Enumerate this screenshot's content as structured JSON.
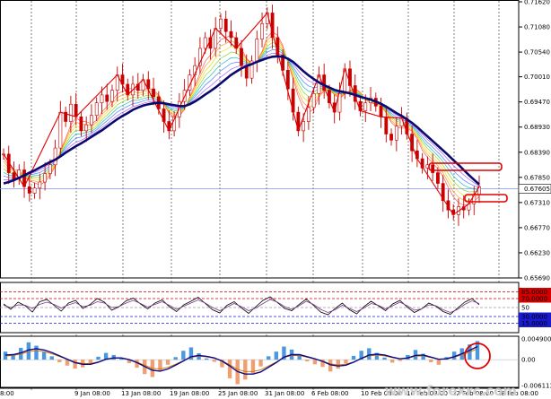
{
  "chart_data": [
    {
      "type": "candlestick",
      "instrument_price_label": "0.67605",
      "y_tick_labels": [
        "0.71620",
        "0.71080",
        "0.70540",
        "0.70010",
        "0.69470",
        "0.68930",
        "0.68390",
        "0.67850",
        "0.67310",
        "0.66770",
        "0.66230",
        "0.65690"
      ],
      "ylim": [
        0.6569,
        0.7162
      ],
      "x_tick_labels": [
        "8:00",
        "9 Jan 08:00",
        "13 Jan 08:00",
        "19 Jan 08:00",
        "25 Jan 08:00",
        "31 Jan 08:00",
        "6 Feb 08:00",
        "10 Feb 08:00",
        "16 Feb 08:00",
        "22 Feb 08:00",
        "28 Feb 08:00"
      ],
      "series": [
        {
          "values": [
            0.6835,
            0.6795,
            0.6781,
            0.6801,
            0.6765,
            0.6751,
            0.6762,
            0.6775,
            0.6793,
            0.6812,
            0.6848,
            0.6925,
            0.6905,
            0.6942,
            0.6915,
            0.6885,
            0.6898,
            0.6918,
            0.6945,
            0.6962,
            0.6948,
            0.6972,
            0.7005,
            0.6985,
            0.6962,
            0.6985,
            0.6972,
            0.6995,
            0.6975,
            0.6958,
            0.6932,
            0.6905,
            0.6885,
            0.6915,
            0.6948,
            0.6972,
            0.7005,
            0.7025,
            0.7062,
            0.7085,
            0.7062,
            0.7105,
            0.7125,
            0.7098,
            0.7085,
            0.7062,
            0.7025,
            0.6998,
            0.7035,
            0.7082,
            0.7115,
            0.7138,
            0.7085,
            0.7048,
            0.7015,
            0.6975,
            0.6925,
            0.6885,
            0.6905,
            0.6935,
            0.6965,
            0.7005,
            0.6972,
            0.6945,
            0.6925,
            0.6965,
            0.7018,
            0.6982,
            0.6948,
            0.6928,
            0.6945,
            0.6955,
            0.6938,
            0.6915,
            0.6878,
            0.6865,
            0.6895,
            0.6912,
            0.6878,
            0.6842,
            0.6825,
            0.6805,
            0.6812,
            0.6795,
            0.6772,
            0.6735,
            0.6715,
            0.6705,
            0.6722,
            0.6715,
            0.6728,
            0.6748,
            0.6765
          ]
        },
        {
          "values": [
            0.6772,
            0.6775,
            0.6779,
            0.6784,
            0.6789,
            0.6795,
            0.68,
            0.6806,
            0.6812,
            0.6818,
            0.6823,
            0.683,
            0.6838,
            0.6845,
            0.6852,
            0.6858,
            0.6865,
            0.6872,
            0.6879,
            0.6886,
            0.6894,
            0.6902,
            0.691,
            0.6917,
            0.6923,
            0.693,
            0.6935,
            0.6939,
            0.6942,
            0.6944,
            0.6945,
            0.6944,
            0.6942,
            0.694,
            0.6938,
            0.6938,
            0.6942,
            0.6948,
            0.6955,
            0.6963,
            0.697,
            0.6978,
            0.6987,
            0.6996,
            0.7005,
            0.7012,
            0.7019,
            0.7024,
            0.7028,
            0.7033,
            0.7037,
            0.7041,
            0.7044,
            0.7045,
            0.7044,
            0.704,
            0.7033,
            0.7023,
            0.7013,
            0.7004,
            0.6996,
            0.6989,
            0.6983,
            0.6978,
            0.6973,
            0.697,
            0.6968,
            0.6965,
            0.6962,
            0.6958,
            0.6955,
            0.6952,
            0.6948,
            0.6943,
            0.6937,
            0.693,
            0.6923,
            0.6917,
            0.691,
            0.6902,
            0.6893,
            0.6883,
            0.6873,
            0.6863,
            0.6853,
            0.6843,
            0.6833,
            0.6822,
            0.6812,
            0.6801,
            0.679,
            0.678,
            0.677
          ]
        }
      ],
      "horizontal_line": 0.67605,
      "colors": {
        "price": "#c80000",
        "ma": "#0a0a6e",
        "zigzag": "#e00000",
        "hline": "#7b96ff",
        "fan": [
          "#ff3a3a",
          "#ff8a00",
          "#f5d000",
          "#7ad000",
          "#00b0b0",
          "#3070ff",
          "#9a40ff"
        ]
      }
    },
    {
      "type": "line",
      "y_tick_labels": [
        "85.0000",
        "70.0000",
        "50",
        "30.0000",
        "15.0000"
      ],
      "levels": [
        85,
        70,
        50,
        30,
        15
      ],
      "ylim": [
        0,
        100
      ],
      "series": [
        {
          "values": [
            58,
            46,
            62,
            54,
            40,
            63,
            68,
            55,
            42,
            60,
            66,
            48,
            57,
            70,
            62,
            44,
            52,
            65,
            71,
            58,
            47,
            60,
            67,
            52,
            41,
            56,
            64,
            73,
            59,
            45,
            38,
            55,
            63,
            49,
            37,
            52,
            66,
            74,
            61,
            48,
            43,
            57,
            69,
            55,
            40,
            34,
            48,
            60,
            45,
            36,
            52,
            64,
            54,
            43,
            58,
            66,
            51,
            39,
            47,
            60,
            53,
            41,
            35,
            49,
            62,
            70,
            56
          ]
        },
        {
          "values": [
            55,
            50,
            56,
            55,
            48,
            57,
            62,
            57,
            49,
            56,
            61,
            52,
            55,
            63,
            60,
            50,
            52,
            60,
            66,
            59,
            51,
            57,
            63,
            55,
            46,
            53,
            60,
            67,
            60,
            50,
            43,
            51,
            59,
            52,
            43,
            49,
            59,
            68,
            62,
            52,
            46,
            54,
            64,
            57,
            46,
            39,
            45,
            55,
            48,
            41,
            49,
            59,
            55,
            47,
            54,
            62,
            54,
            44,
            47,
            56,
            54,
            45,
            39,
            46,
            57,
            65,
            59
          ]
        }
      ],
      "colors": {
        "fast": "#000000",
        "slow": "#7a3a8a",
        "level_high": "#d40000",
        "level_low": "#1a1ad0"
      }
    },
    {
      "type": "bar",
      "y_tick_labels": [
        "0.0049007",
        "0.00",
        "-0.0061137"
      ],
      "ylim": [
        -0.0061137,
        0.0049007
      ],
      "values": [
        0.0019,
        0.0012,
        0.0028,
        0.0041,
        0.0033,
        0.0018,
        0.0008,
        -0.0006,
        -0.0014,
        -0.0021,
        -0.0018,
        -0.0009,
        0.0007,
        0.0016,
        0.0011,
        0.0004,
        -0.0008,
        -0.0019,
        -0.0034,
        -0.0041,
        -0.0026,
        -0.0012,
        0.0006,
        0.0021,
        0.0029,
        0.0015,
        0.0003,
        -0.0005,
        -0.0018,
        -0.0044,
        -0.0058,
        -0.0047,
        -0.0032,
        -0.0016,
        0.0008,
        0.0019,
        0.0031,
        0.0024,
        0.0012,
        -0.0004,
        -0.0011,
        -0.0017,
        -0.0028,
        -0.0021,
        -0.0009,
        0.0009,
        0.0021,
        0.0027,
        0.0016,
        0.0005,
        -0.0007,
        -0.0003,
        0.0011,
        0.0023,
        0.0014,
        -0.0006,
        -0.0012,
        0.0006,
        0.0019,
        0.0027,
        0.0036,
        0.0044
      ],
      "signal": [
        0.0011,
        0.0012,
        0.0016,
        0.0023,
        0.0026,
        0.0023,
        0.0017,
        0.0009,
        0.0001,
        -0.0007,
        -0.0011,
        -0.0011,
        -0.0006,
        0.0001,
        0.0004,
        0.0004,
        0.0,
        -0.0007,
        -0.0016,
        -0.0025,
        -0.0027,
        -0.0022,
        -0.0013,
        -0.0003,
        0.0007,
        0.001,
        0.0008,
        0.0004,
        -0.0003,
        -0.0015,
        -0.0028,
        -0.0034,
        -0.0034,
        -0.0029,
        -0.0018,
        -0.0007,
        0.0006,
        0.0012,
        0.0012,
        0.0007,
        0.0002,
        -0.0004,
        -0.0012,
        -0.0015,
        -0.0013,
        -0.0006,
        0.0003,
        0.0011,
        0.0013,
        0.0011,
        0.0006,
        0.0002,
        0.0004,
        0.001,
        0.0011,
        0.0006,
        0.0001,
        0.0002,
        0.0007,
        0.0014,
        0.0022,
        0.0031
      ],
      "colors": {
        "positive": "#4a98e0",
        "negative": "#f0a070",
        "signal": "#0a0a8a",
        "signal2": "#d07000"
      }
    }
  ],
  "watermark": "www.forexrc.com",
  "annotation_colors": {
    "box": "#e00000"
  }
}
